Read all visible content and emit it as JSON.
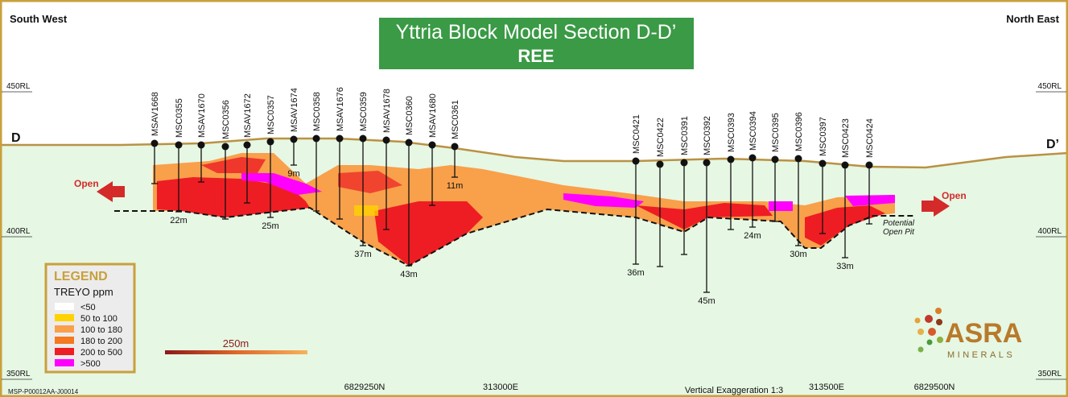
{
  "header": {
    "left": "South West",
    "right": "North East",
    "title": "Yttria Block Model Section D-D’",
    "subtitle": "REE"
  },
  "elevation_labels": [
    "450RL",
    "400RL",
    "350RL"
  ],
  "section_ends": {
    "left": "D",
    "right": "D’"
  },
  "open_labels": [
    "Open",
    "Open"
  ],
  "drill_holes": [
    {
      "name": "MSAV1668"
    },
    {
      "name": "MSC0355",
      "depth": "22m"
    },
    {
      "name": "MSAV1670"
    },
    {
      "name": "MSC0356"
    },
    {
      "name": "MSAV1672"
    },
    {
      "name": "MSC0357",
      "depth": "25m"
    },
    {
      "name": "MSAV1674",
      "depth": "9m"
    },
    {
      "name": "MSC0358"
    },
    {
      "name": "MSAV1676"
    },
    {
      "name": "MSC0359",
      "depth": "37m"
    },
    {
      "name": "MSAV1678"
    },
    {
      "name": "MSC0360",
      "depth": "43m"
    },
    {
      "name": "MSAV1680"
    },
    {
      "name": "MSC0361",
      "depth": "11m"
    },
    {
      "name": "MSC0421",
      "depth": "36m"
    },
    {
      "name": "MSC0422"
    },
    {
      "name": "MSC0391"
    },
    {
      "name": "MSC0392",
      "depth": "45m"
    },
    {
      "name": "MSC0393"
    },
    {
      "name": "MSC0394",
      "depth": "24m"
    },
    {
      "name": "MSC0395"
    },
    {
      "name": "MSC0396",
      "depth": "30m"
    },
    {
      "name": "MSC0397"
    },
    {
      "name": "MSC0423",
      "depth": "33m"
    },
    {
      "name": "MSC0424"
    }
  ],
  "open_pit_label": [
    "Potential",
    "Open Pit"
  ],
  "legend": {
    "title": "LEGEND",
    "subtitle": "TREYO ppm",
    "items": [
      {
        "label": "<50",
        "color": "#ffffff"
      },
      {
        "label": "50 to 100",
        "color": "#ffd200"
      },
      {
        "label": "100 to 180",
        "color": "#f9a04b"
      },
      {
        "label": "180 to 200",
        "color": "#f47920"
      },
      {
        "label": "200 to 500",
        "color": "#ee1d23"
      },
      {
        "label": ">500",
        "color": "#ff00ff"
      }
    ]
  },
  "scale_bar": "250m",
  "footer": {
    "drawing_id": "MSP-P00012AA-J00014",
    "coordinates": [
      "6829250N",
      "313000E",
      "313500E",
      "6829500N"
    ],
    "exaggeration": "Vertical Exaggeration 1:3"
  },
  "logo": {
    "name": "ASRA",
    "sub": "MINERALS"
  }
}
